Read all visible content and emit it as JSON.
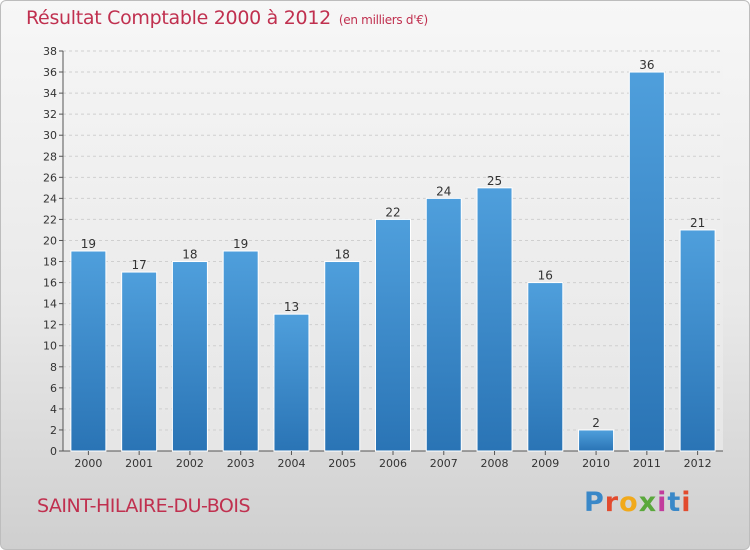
{
  "header": {
    "title": "Résultat Comptable 2000 à 2012",
    "subtitle": "(en milliers d'€)"
  },
  "footer": {
    "commune": "SAINT-HILAIRE-DU-BOIS",
    "logo_letters": [
      "P",
      "r",
      "o",
      "x",
      "i",
      "t",
      "i"
    ],
    "logo_colors": [
      "#3a88c8",
      "#e24b2e",
      "#f1a91b",
      "#5aa83c",
      "#c23b9c",
      "#3a88c8",
      "#e24b2e"
    ]
  },
  "chart_data": {
    "type": "bar",
    "title": "Résultat Comptable 2000 à 2012",
    "subtitle": "(en milliers d'€)",
    "categories": [
      "2000",
      "2001",
      "2002",
      "2003",
      "2004",
      "2005",
      "2006",
      "2007",
      "2008",
      "2009",
      "2010",
      "2011",
      "2012"
    ],
    "values": [
      19,
      17,
      18,
      19,
      13,
      18,
      22,
      24,
      25,
      16,
      2,
      36,
      21
    ],
    "ylim": [
      0,
      38
    ],
    "yticks": [
      0,
      2,
      4,
      6,
      8,
      10,
      12,
      14,
      16,
      18,
      20,
      22,
      24,
      26,
      28,
      30,
      32,
      34,
      36,
      38
    ],
    "grid": true,
    "bar_color": "#4f9fdc",
    "bar_color_dark": "#2a74b5"
  }
}
